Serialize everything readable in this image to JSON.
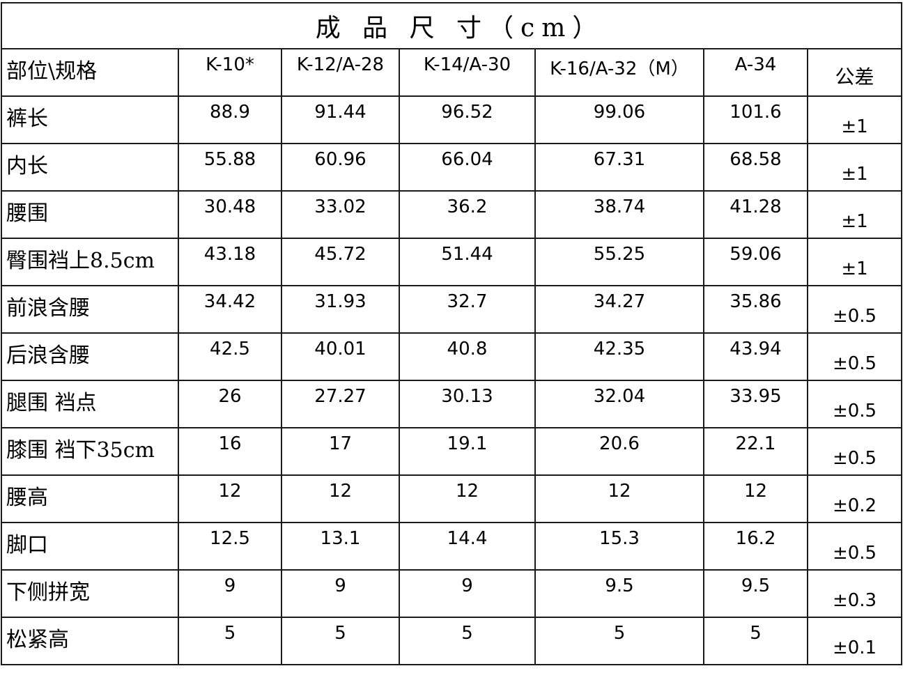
{
  "title": "成 品 尺 寸（cm）",
  "header": {
    "part_label": "部位\\规格",
    "sizes": [
      "K-10*",
      "K-12/A-28",
      "K-14/A-30",
      "K-16/A-32（M）",
      "A-34"
    ],
    "tolerance_label": "公差"
  },
  "rows": [
    {
      "part": "裤长",
      "values": [
        "88.9",
        "91.44",
        "96.52",
        "99.06",
        "101.6"
      ],
      "tolerance": "±1"
    },
    {
      "part": "内长",
      "values": [
        "55.88",
        "60.96",
        "66.04",
        "67.31",
        "68.58"
      ],
      "tolerance": "±1"
    },
    {
      "part": "腰围",
      "values": [
        "30.48",
        "33.02",
        "36.2",
        "38.74",
        "41.28"
      ],
      "tolerance": "±1"
    },
    {
      "part": "臀围裆上8.5cm",
      "values": [
        "43.18",
        "45.72",
        "51.44",
        "55.25",
        "59.06"
      ],
      "tolerance": "±1"
    },
    {
      "part": "前浪含腰",
      "values": [
        "34.42",
        "31.93",
        "32.7",
        "34.27",
        "35.86"
      ],
      "tolerance": "±0.5"
    },
    {
      "part": "后浪含腰",
      "values": [
        "42.5",
        "40.01",
        "40.8",
        "42.35",
        "43.94"
      ],
      "tolerance": "±0.5"
    },
    {
      "part": "腿围  裆点",
      "values": [
        "26",
        "27.27",
        "30.13",
        "32.04",
        "33.95"
      ],
      "tolerance": "±0.5"
    },
    {
      "part": "膝围  裆下35cm",
      "values": [
        "16",
        "17",
        "19.1",
        "20.6",
        "22.1"
      ],
      "tolerance": "±0.5"
    },
    {
      "part": "腰高",
      "values": [
        "12",
        "12",
        "12",
        "12",
        "12"
      ],
      "tolerance": "±0.2"
    },
    {
      "part": "脚口",
      "values": [
        "12.5",
        "13.1",
        "14.4",
        "15.3",
        "16.2"
      ],
      "tolerance": "±0.5"
    },
    {
      "part": "下侧拼宽",
      "values": [
        "9",
        "9",
        "9",
        "9.5",
        "9.5"
      ],
      "tolerance": "±0.3"
    },
    {
      "part": "松紧高",
      "values": [
        "5",
        "5",
        "5",
        "5",
        "5"
      ],
      "tolerance": "±0.1"
    }
  ]
}
